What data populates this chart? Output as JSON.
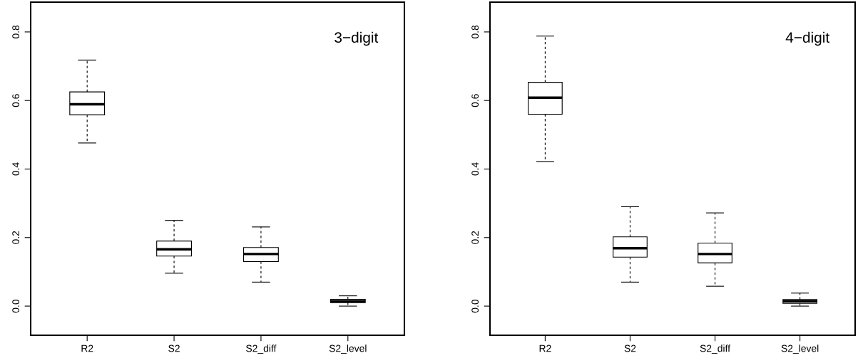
{
  "chart_data": [
    {
      "type": "box",
      "categories": [
        "R2",
        "S2",
        "S2_diff",
        "S2_level"
      ],
      "annotations": [
        "3−digit"
      ],
      "ylim": [
        -0.085,
        0.887
      ],
      "yticks": [
        {
          "value": 0,
          "label": "0.0"
        },
        0.2,
        0.4,
        0.6,
        0.8
      ],
      "grid": false,
      "boxes": [
        {
          "low": 0.476,
          "q1": 0.558,
          "median": 0.589,
          "q3": 0.625,
          "high": 0.718
        },
        {
          "low": 0.096,
          "q1": 0.146,
          "median": 0.166,
          "q3": 0.19,
          "high": 0.25
        },
        {
          "low": 0.07,
          "q1": 0.13,
          "median": 0.152,
          "q3": 0.171,
          "high": 0.231
        },
        {
          "low": 0.0,
          "q1": 0.01,
          "median": 0.014,
          "q3": 0.02,
          "high": 0.03
        }
      ]
    },
    {
      "type": "box",
      "categories": [
        "R2",
        "S2",
        "S2_diff",
        "S2_level"
      ],
      "annotations": [
        "4−digit"
      ],
      "ylim": [
        -0.085,
        0.887
      ],
      "yticks": [
        {
          "value": 0,
          "label": "0.0"
        },
        0.2,
        0.4,
        0.6,
        0.8
      ],
      "grid": false,
      "boxes": [
        {
          "low": 0.422,
          "q1": 0.56,
          "median": 0.608,
          "q3": 0.653,
          "high": 0.788
        },
        {
          "low": 0.07,
          "q1": 0.143,
          "median": 0.169,
          "q3": 0.202,
          "high": 0.29
        },
        {
          "low": 0.058,
          "q1": 0.126,
          "median": 0.152,
          "q3": 0.184,
          "high": 0.272
        },
        {
          "low": 0.0,
          "q1": 0.008,
          "median": 0.014,
          "q3": 0.019,
          "high": 0.038
        }
      ]
    }
  ]
}
